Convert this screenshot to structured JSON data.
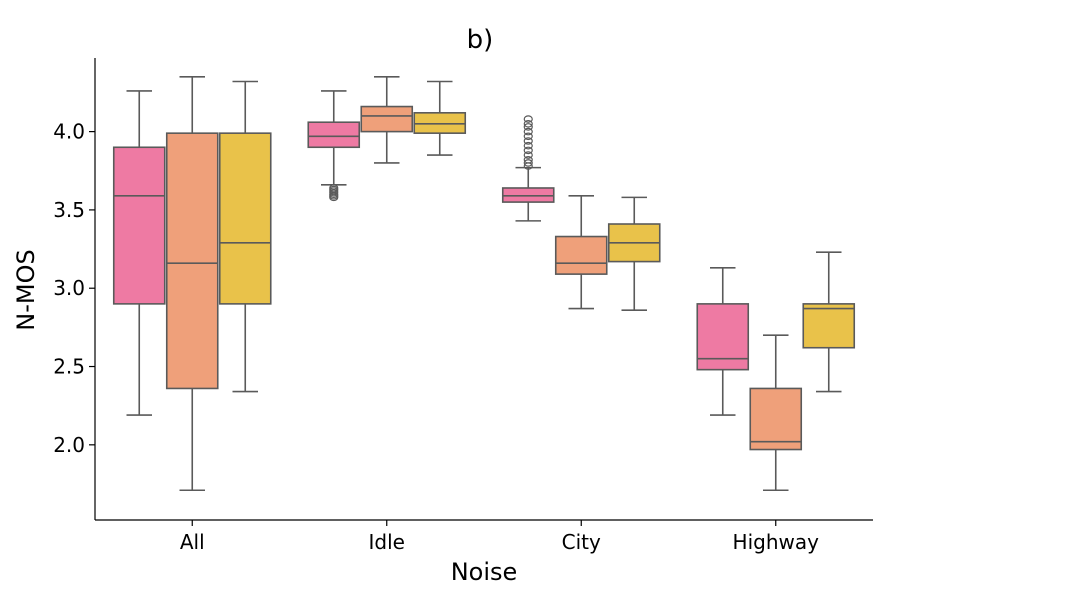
{
  "chart_data": {
    "type": "boxplot",
    "title": "b)",
    "xlabel": "Noise",
    "ylabel": "N-MOS",
    "ylim": [
      1.52,
      4.47
    ],
    "yticks": [
      2.0,
      2.5,
      3.0,
      3.5,
      4.0
    ],
    "ytick_labels": [
      "2.0",
      "2.5",
      "3.0",
      "3.5",
      "4.0"
    ],
    "categories": [
      "All",
      "Idle",
      "City",
      "Highway"
    ],
    "series_colors": [
      "#ee7aa3",
      "#efa07a",
      "#e9c24a"
    ],
    "groups": [
      {
        "category": "All",
        "boxes": [
          {
            "whislo": 2.19,
            "q1": 2.9,
            "med": 3.59,
            "q3": 3.9,
            "whishi": 4.26,
            "fliers": []
          },
          {
            "whislo": 1.71,
            "q1": 2.36,
            "med": 3.16,
            "q3": 3.99,
            "whishi": 4.35,
            "fliers": []
          },
          {
            "whislo": 2.34,
            "q1": 2.9,
            "med": 3.29,
            "q3": 3.99,
            "whishi": 4.32,
            "fliers": []
          }
        ]
      },
      {
        "category": "Idle",
        "boxes": [
          {
            "whislo": 3.66,
            "q1": 3.9,
            "med": 3.97,
            "q3": 4.06,
            "whishi": 4.26,
            "fliers": [
              3.58,
              3.59,
              3.6,
              3.61,
              3.62,
              3.63,
              3.64
            ]
          },
          {
            "whislo": 3.8,
            "q1": 4.0,
            "med": 4.1,
            "q3": 4.16,
            "whishi": 4.35,
            "fliers": []
          },
          {
            "whislo": 3.85,
            "q1": 3.99,
            "med": 4.05,
            "q3": 4.12,
            "whishi": 4.32,
            "fliers": []
          }
        ]
      },
      {
        "category": "City",
        "boxes": [
          {
            "whislo": 3.43,
            "q1": 3.55,
            "med": 3.59,
            "q3": 3.64,
            "whishi": 3.77,
            "fliers": [
              3.78,
              3.8,
              3.82,
              3.85,
              3.88,
              3.91,
              3.94,
              3.97,
              4.0,
              4.03,
              4.05,
              4.08
            ]
          },
          {
            "whislo": 2.87,
            "q1": 3.09,
            "med": 3.16,
            "q3": 3.33,
            "whishi": 3.59,
            "fliers": []
          },
          {
            "whislo": 2.86,
            "q1": 3.17,
            "med": 3.29,
            "q3": 3.41,
            "whishi": 3.58,
            "fliers": []
          }
        ]
      },
      {
        "category": "Highway",
        "boxes": [
          {
            "whislo": 2.19,
            "q1": 2.48,
            "med": 2.55,
            "q3": 2.9,
            "whishi": 3.13,
            "fliers": []
          },
          {
            "whislo": 1.71,
            "q1": 1.97,
            "med": 2.02,
            "q3": 2.36,
            "whishi": 2.7,
            "fliers": []
          },
          {
            "whislo": 2.34,
            "q1": 2.62,
            "med": 2.87,
            "q3": 2.9,
            "whishi": 3.23,
            "fliers": []
          }
        ]
      }
    ]
  }
}
